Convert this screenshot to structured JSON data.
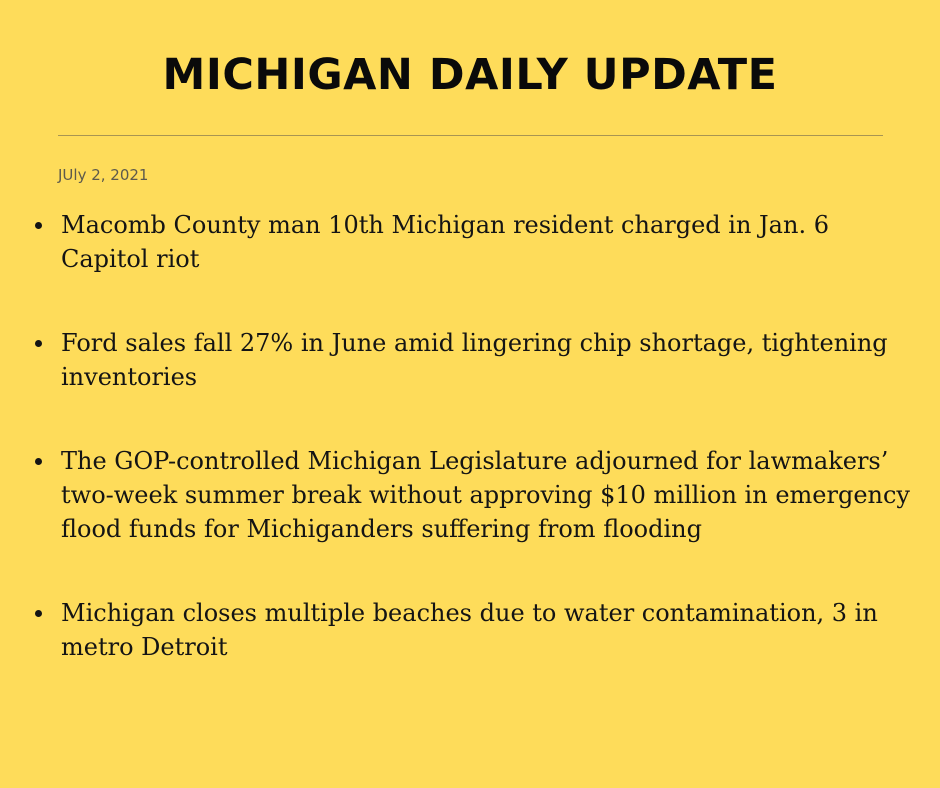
{
  "header": {
    "title": "MICHIGAN DAILY UPDATE",
    "date": "JUly 2, 2021"
  },
  "news": {
    "items": [
      {
        "text": "Macomb County man 10th Michigan resident charged in Jan. 6 Capitol riot"
      },
      {
        "text": "Ford sales fall 27% in June amid lingering chip shortage, tightening inventories"
      },
      {
        "text": "The GOP-controlled Michigan Legislature adjourned for lawmakers’ two-week summer break without approving $10 million in emergency flood funds for Michiganders suffering from flooding"
      },
      {
        "text": "Michigan closes multiple beaches due to water contamination, 3 in metro Detroit"
      }
    ]
  },
  "colors": {
    "background": "#fedc5a",
    "text": "#141414",
    "rule": "#a89552",
    "date": "#5d5a4c"
  }
}
